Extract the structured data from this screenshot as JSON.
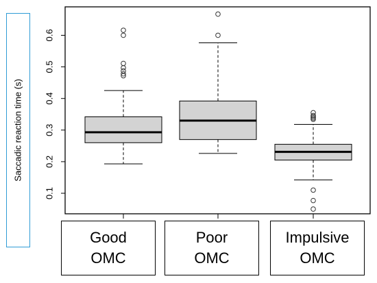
{
  "chart_data": {
    "type": "box",
    "ylabel": "Saccadic reaction time (s)",
    "ylim": [
      0.035,
      0.69
    ],
    "yticks": [
      "0.1",
      "0.2",
      "0.3",
      "0.4",
      "0.5",
      "0.6"
    ],
    "grid": false,
    "groups": [
      {
        "label_lines": [
          "Good",
          "OMC"
        ],
        "whisker_low": 0.193,
        "q1": 0.26,
        "median": 0.293,
        "q3": 0.342,
        "whisker_high": 0.425,
        "outliers": [
          0.472,
          0.478,
          0.487,
          0.497,
          0.511,
          0.6,
          0.616
        ]
      },
      {
        "label_lines": [
          "Poor",
          "OMC"
        ],
        "whisker_low": 0.226,
        "q1": 0.27,
        "median": 0.33,
        "q3": 0.392,
        "whisker_high": 0.576,
        "outliers": [
          0.6,
          0.667
        ]
      },
      {
        "label_lines": [
          "Impulsive",
          "OMC"
        ],
        "whisker_low": 0.142,
        "q1": 0.205,
        "median": 0.231,
        "q3": 0.255,
        "whisker_high": 0.318,
        "outliers": [
          0.334,
          0.338,
          0.342,
          0.346,
          0.355,
          0.11,
          0.077,
          0.05
        ]
      }
    ]
  },
  "style": {
    "box_fill": "#d3d3d3",
    "stroke": "#000000",
    "label_border": "#2e9bd6"
  }
}
